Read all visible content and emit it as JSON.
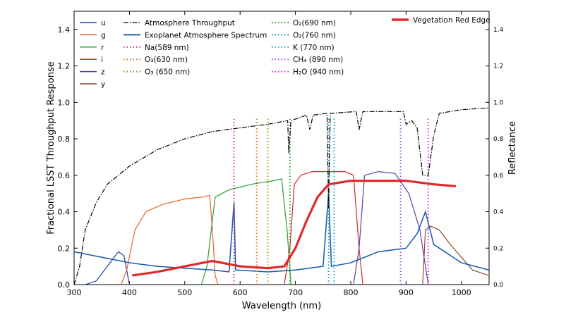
{
  "chart_data": {
    "type": "line",
    "xlabel": "Wavelength (nm)",
    "ylabel": "Fractional LSST Throughput Response",
    "ylabel_right": "Reflectance",
    "xlim": [
      300,
      1050
    ],
    "ylim": [
      0,
      1.5
    ],
    "ylim_right": [
      0,
      1.5
    ],
    "xticks": [
      300,
      400,
      500,
      600,
      700,
      800,
      900,
      1000
    ],
    "yticks": [
      0.0,
      0.2,
      0.4,
      0.6,
      0.8,
      1.0,
      1.2,
      1.4
    ],
    "yticks_right": [
      0.0,
      0.2,
      0.4,
      0.6,
      0.8,
      1.0,
      1.2,
      1.4
    ],
    "grid": false,
    "filters": [
      {
        "name": "u",
        "color": "#1f3fa0",
        "points": [
          [
            320,
            0
          ],
          [
            340,
            0.02
          ],
          [
            360,
            0.1
          ],
          [
            380,
            0.18
          ],
          [
            390,
            0.16
          ],
          [
            395,
            0.08
          ],
          [
            400,
            0.0
          ]
        ]
      },
      {
        "name": "g",
        "color": "#e8632a",
        "points": [
          [
            385,
            0
          ],
          [
            395,
            0.08
          ],
          [
            410,
            0.3
          ],
          [
            430,
            0.4
          ],
          [
            460,
            0.44
          ],
          [
            500,
            0.47
          ],
          [
            530,
            0.48
          ],
          [
            545,
            0.49
          ],
          [
            550,
            0.3
          ],
          [
            555,
            0.05
          ],
          [
            560,
            0
          ]
        ]
      },
      {
        "name": "r",
        "color": "#2a9a3a",
        "points": [
          [
            530,
            0
          ],
          [
            540,
            0.1
          ],
          [
            555,
            0.48
          ],
          [
            580,
            0.52
          ],
          [
            620,
            0.55
          ],
          [
            660,
            0.57
          ],
          [
            675,
            0.58
          ],
          [
            685,
            0.3
          ],
          [
            692,
            0
          ]
        ]
      },
      {
        "name": "i",
        "color": "#d62728",
        "points": [
          [
            680,
            0
          ],
          [
            690,
            0.2
          ],
          [
            698,
            0.55
          ],
          [
            710,
            0.6
          ],
          [
            730,
            0.62
          ],
          [
            760,
            0.62
          ],
          [
            790,
            0.62
          ],
          [
            805,
            0.6
          ],
          [
            815,
            0.2
          ],
          [
            822,
            0
          ]
        ]
      },
      {
        "name": "z",
        "color": "#5b3fa6",
        "points": [
          [
            805,
            0
          ],
          [
            815,
            0.2
          ],
          [
            825,
            0.6
          ],
          [
            850,
            0.62
          ],
          [
            880,
            0.61
          ],
          [
            905,
            0.5
          ],
          [
            915,
            0.4
          ],
          [
            925,
            0.3
          ],
          [
            935,
            0.1
          ],
          [
            940,
            0
          ]
        ]
      },
      {
        "name": "y",
        "color": "#8c4a2f",
        "points": [
          [
            930,
            0
          ],
          [
            935,
            0.3
          ],
          [
            945,
            0.32
          ],
          [
            960,
            0.3
          ],
          [
            980,
            0.22
          ],
          [
            1000,
            0.15
          ],
          [
            1020,
            0.08
          ],
          [
            1050,
            0.05
          ]
        ]
      }
    ],
    "atmosphere_throughput": {
      "name": "Atmosphere Throughput",
      "color": "#000000",
      "points": [
        [
          300,
          0.0
        ],
        [
          310,
          0.1
        ],
        [
          320,
          0.3
        ],
        [
          340,
          0.45
        ],
        [
          360,
          0.55
        ],
        [
          400,
          0.65
        ],
        [
          450,
          0.74
        ],
        [
          500,
          0.8
        ],
        [
          550,
          0.84
        ],
        [
          600,
          0.86
        ],
        [
          650,
          0.88
        ],
        [
          686,
          0.9
        ],
        [
          688,
          0.72
        ],
        [
          692,
          0.9
        ],
        [
          720,
          0.93
        ],
        [
          726,
          0.85
        ],
        [
          732,
          0.93
        ],
        [
          757,
          0.94
        ],
        [
          760,
          0.42
        ],
        [
          763,
          0.94
        ],
        [
          810,
          0.95
        ],
        [
          815,
          0.85
        ],
        [
          822,
          0.95
        ],
        [
          895,
          0.95
        ],
        [
          900,
          0.88
        ],
        [
          910,
          0.9
        ],
        [
          920,
          0.86
        ],
        [
          930,
          0.6
        ],
        [
          940,
          0.6
        ],
        [
          950,
          0.82
        ],
        [
          960,
          0.94
        ],
        [
          1000,
          0.96
        ],
        [
          1050,
          0.97
        ]
      ]
    },
    "exoplanet_spectrum": {
      "name": "Exoplanet Atmosphere Spectrum",
      "color": "#1e5fb0",
      "points": [
        [
          300,
          0.18
        ],
        [
          350,
          0.15
        ],
        [
          400,
          0.12
        ],
        [
          450,
          0.1
        ],
        [
          500,
          0.09
        ],
        [
          550,
          0.08
        ],
        [
          580,
          0.07
        ],
        [
          589,
          0.45
        ],
        [
          592,
          0.08
        ],
        [
          650,
          0.07
        ],
        [
          700,
          0.08
        ],
        [
          750,
          0.1
        ],
        [
          760,
          0.5
        ],
        [
          765,
          0.1
        ],
        [
          800,
          0.12
        ],
        [
          850,
          0.18
        ],
        [
          900,
          0.2
        ],
        [
          920,
          0.28
        ],
        [
          935,
          0.4
        ],
        [
          950,
          0.22
        ],
        [
          1000,
          0.12
        ],
        [
          1050,
          0.08
        ]
      ]
    },
    "vegetation_red_edge": {
      "name": "Vegetation Red Edge",
      "color": "#e0292a",
      "points": [
        [
          405,
          0.05
        ],
        [
          450,
          0.07
        ],
        [
          500,
          0.1
        ],
        [
          550,
          0.13
        ],
        [
          600,
          0.1
        ],
        [
          650,
          0.09
        ],
        [
          680,
          0.1
        ],
        [
          700,
          0.2
        ],
        [
          720,
          0.35
        ],
        [
          740,
          0.48
        ],
        [
          760,
          0.55
        ],
        [
          800,
          0.57
        ],
        [
          900,
          0.57
        ],
        [
          950,
          0.55
        ],
        [
          990,
          0.54
        ]
      ]
    },
    "absorption_lines": [
      {
        "label": "Na(589 nm)",
        "wavelength": 589,
        "color": "#e8335a"
      },
      {
        "label": "O₃(630 nm)",
        "wavelength": 630,
        "color": "#e07a1a"
      },
      {
        "label": "O₃ (650 nm)",
        "wavelength": 650,
        "color": "#9a9a1a"
      },
      {
        "label": "O₂(690 nm)",
        "wavelength": 690,
        "color": "#2aa02a"
      },
      {
        "label": "O₂(760 nm)",
        "wavelength": 760,
        "color": "#12a0a0"
      },
      {
        "label": "K (770 nm)",
        "wavelength": 770,
        "color": "#14a8c8"
      },
      {
        "label": "CH₄ (890 nm)",
        "wavelength": 890,
        "color": "#9b4fe0"
      },
      {
        "label": "H₂O (940 nm)",
        "wavelength": 940,
        "color": "#e02ae0"
      }
    ],
    "legend": {
      "col1": [
        "u",
        "g",
        "r",
        "i",
        "z",
        "y"
      ],
      "col2": [
        "Atmosphere Throughput",
        "Exoplanet Atmosphere Spectrum",
        "Na(589 nm)",
        "O₃(630 nm)",
        "O₃ (650 nm)"
      ],
      "col3": [
        "O₂(690 nm)",
        "O₂(760 nm)",
        "K (770 nm)",
        "CH₄ (890 nm)",
        "H₂O (940 nm)"
      ],
      "col4": [
        "Vegetation Red Edge"
      ]
    }
  }
}
